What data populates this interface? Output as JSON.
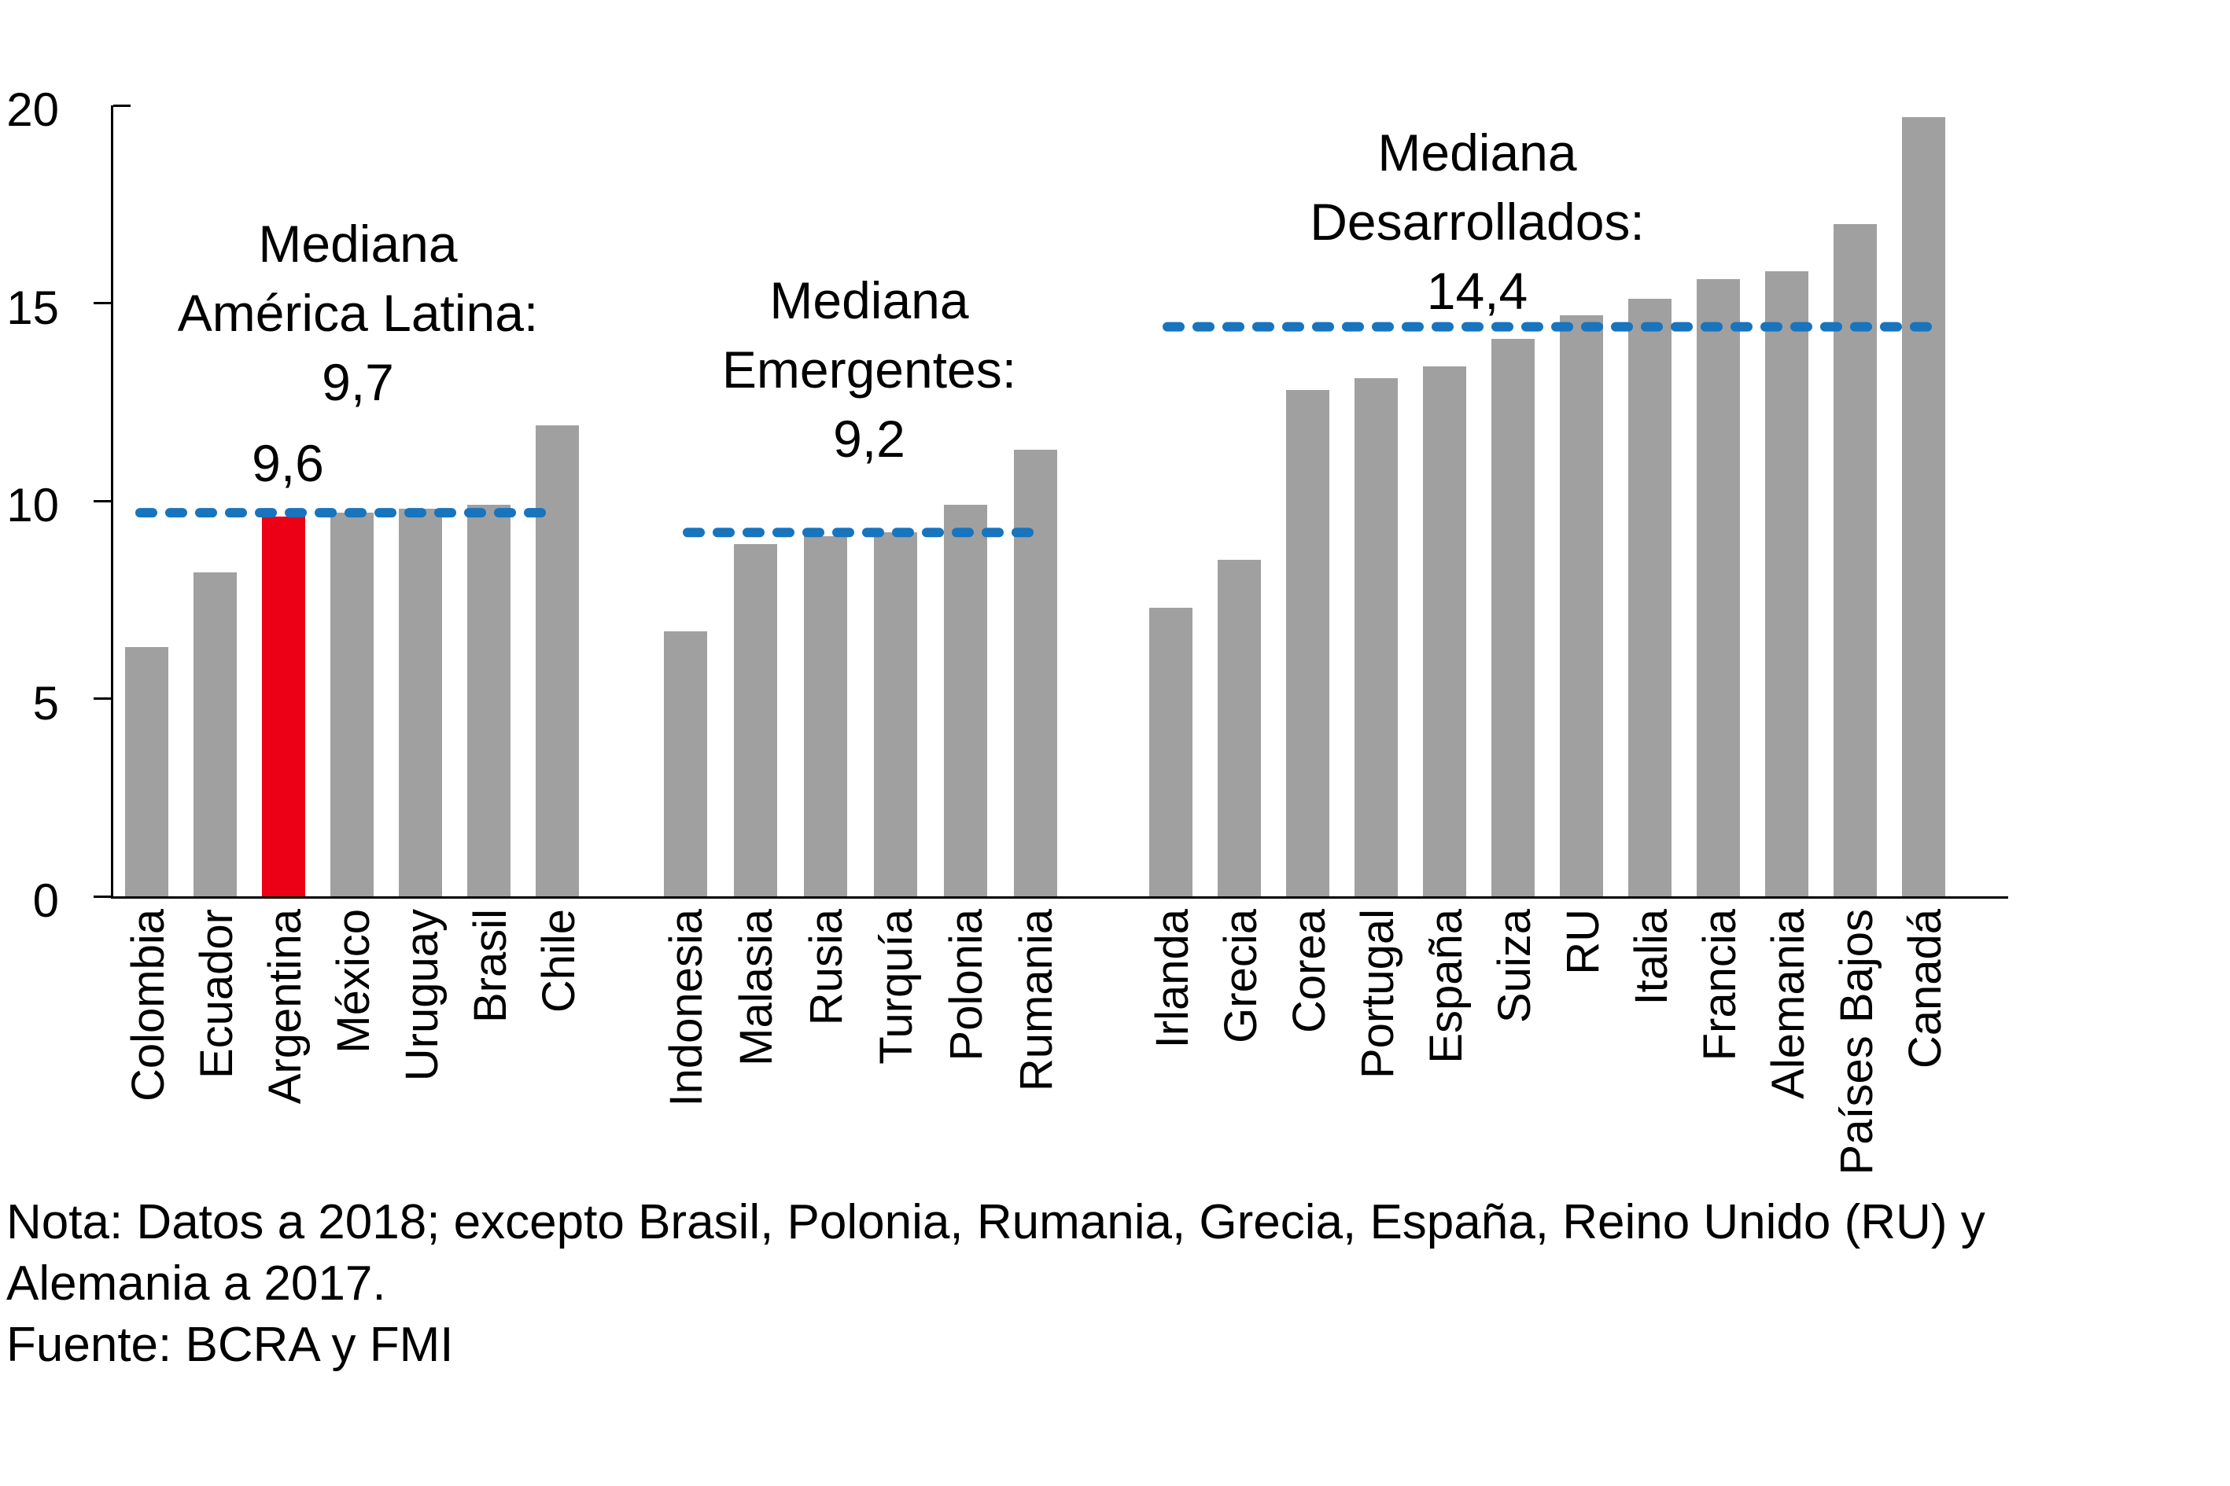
{
  "chart_data": {
    "type": "bar",
    "title": "",
    "xlabel": "",
    "ylabel": "",
    "ylim": [
      0,
      20
    ],
    "yticks": [
      "0",
      "5",
      "10",
      "15",
      "20"
    ],
    "grid": false,
    "bar_color": "#A0A0A0",
    "highlight_color": "#EC0015",
    "median_line_color": "#1874BD",
    "groups": [
      {
        "name": "América Latina",
        "annotation_lines": [
          "Mediana",
          "América Latina:",
          "9,7"
        ],
        "median": 9.7,
        "categories": [
          "Colombia",
          "Ecuador",
          "Argentina",
          "México",
          "Uruguay",
          "Brasil",
          "Chile"
        ],
        "values": [
          6.3,
          8.2,
          9.6,
          9.7,
          9.8,
          9.9,
          11.9
        ],
        "highlight_index": 2,
        "highlight_label": "9,6"
      },
      {
        "name": "Emergentes",
        "annotation_lines": [
          "Mediana",
          "Emergentes:",
          "9,2"
        ],
        "median": 9.2,
        "categories": [
          "Indonesia",
          "Malasia",
          "Rusia",
          "Turquía",
          "Polonia",
          "Rumania"
        ],
        "values": [
          6.7,
          8.9,
          9.1,
          9.2,
          9.9,
          11.3
        ],
        "highlight_index": -1,
        "highlight_label": ""
      },
      {
        "name": "Desarrollados",
        "annotation_lines": [
          "Mediana",
          "Desarrollados:",
          "14,4"
        ],
        "median": 14.4,
        "categories": [
          "Irlanda",
          "Grecia",
          "Corea",
          "Portugal",
          "España",
          "Suiza",
          "RU",
          "Italia",
          "Francia",
          "Alemania",
          "Países Bajos",
          "Canadá"
        ],
        "values": [
          7.3,
          8.5,
          12.8,
          13.1,
          13.4,
          14.1,
          14.7,
          15.1,
          15.6,
          15.8,
          17.0,
          19.7
        ],
        "highlight_index": -1,
        "highlight_label": ""
      }
    ]
  },
  "note": {
    "line1": "Nota: Datos a 2018; excepto Brasil, Polonia, Rumania, Grecia, España, Reino Unido (RU) y",
    "line2": "Alemania a 2017.",
    "line3": "Fuente: BCRA y FMI"
  }
}
